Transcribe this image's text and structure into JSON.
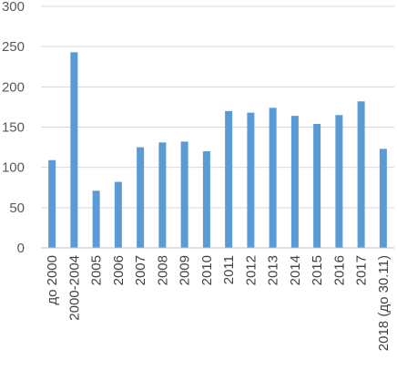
{
  "chart_data": {
    "type": "bar",
    "title": "",
    "xlabel": "",
    "ylabel": "",
    "categories": [
      "до 2000",
      "2000-2004",
      "2005",
      "2006",
      "2007",
      "2008",
      "2009",
      "2010",
      "2011",
      "2012",
      "2013",
      "2014",
      "2015",
      "2016",
      "2017",
      "2018 (до 30.11)"
    ],
    "values": [
      109,
      243,
      71,
      82,
      125,
      131,
      132,
      120,
      170,
      168,
      174,
      164,
      154,
      165,
      182,
      123
    ],
    "ylim": [
      0,
      300
    ],
    "yticks": [
      0,
      50,
      100,
      150,
      200,
      250,
      300
    ],
    "grid": true,
    "legend": "none",
    "bar_color": "#5b9bd5"
  }
}
